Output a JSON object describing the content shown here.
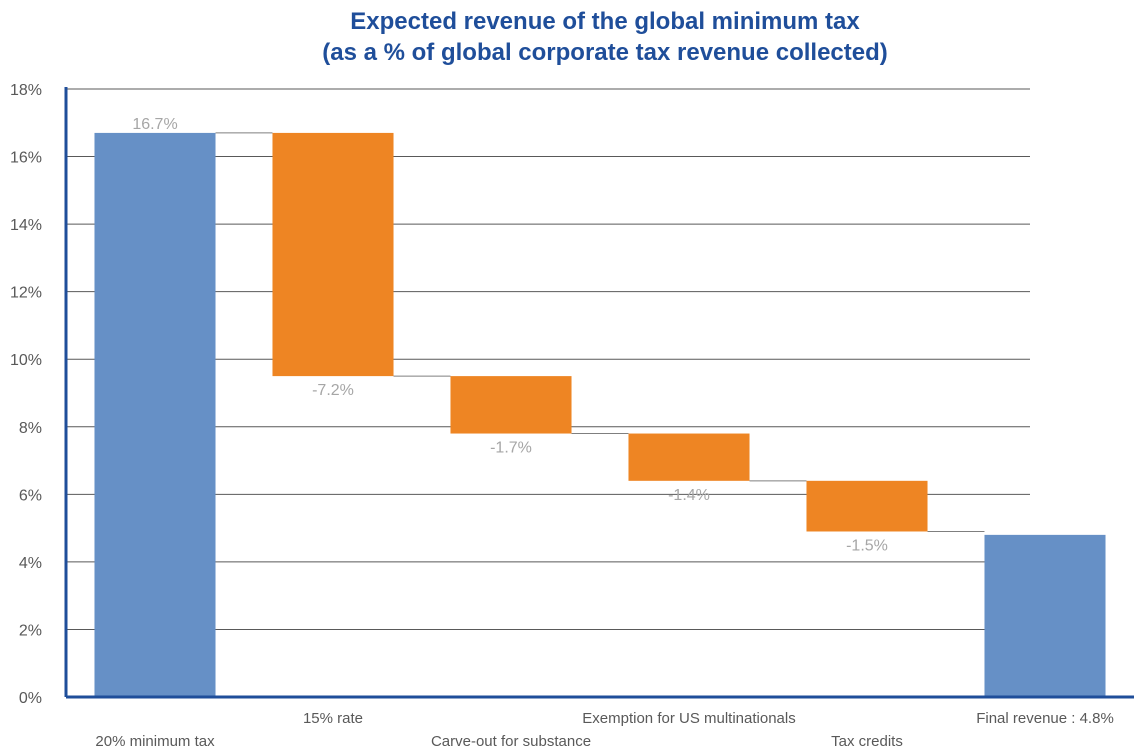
{
  "chart_data": {
    "type": "waterfall",
    "title": "Expected revenue of the global minimum tax",
    "subtitle": "(as a % of global corporate tax revenue collected)",
    "xlabel": "",
    "ylabel": "",
    "ylim": [
      0,
      18
    ],
    "yticks": [
      "0%",
      "2%",
      "4%",
      "6%",
      "8%",
      "10%",
      "12%",
      "14%",
      "16%",
      "18%"
    ],
    "categories": [
      "20% minimum tax",
      "15% rate",
      "Carve-out for substance",
      "Exemption for US multinationals",
      "Tax credits",
      "Final revenue : 4.8%"
    ],
    "values": [
      16.7,
      -7.2,
      -1.7,
      -1.4,
      -1.5,
      4.8
    ],
    "kinds": [
      "total",
      "delta",
      "delta",
      "delta",
      "delta",
      "total"
    ],
    "data_labels": [
      "16.7%",
      "-7.2%",
      "-1.7%",
      "-1.4%",
      "-1.5%",
      ""
    ],
    "colors": {
      "total": "#6690c6",
      "delta": "#ee8523",
      "axis": "#1f4e9a",
      "grid": "#595959",
      "connector": "#7f7f7f"
    },
    "grid": true
  }
}
